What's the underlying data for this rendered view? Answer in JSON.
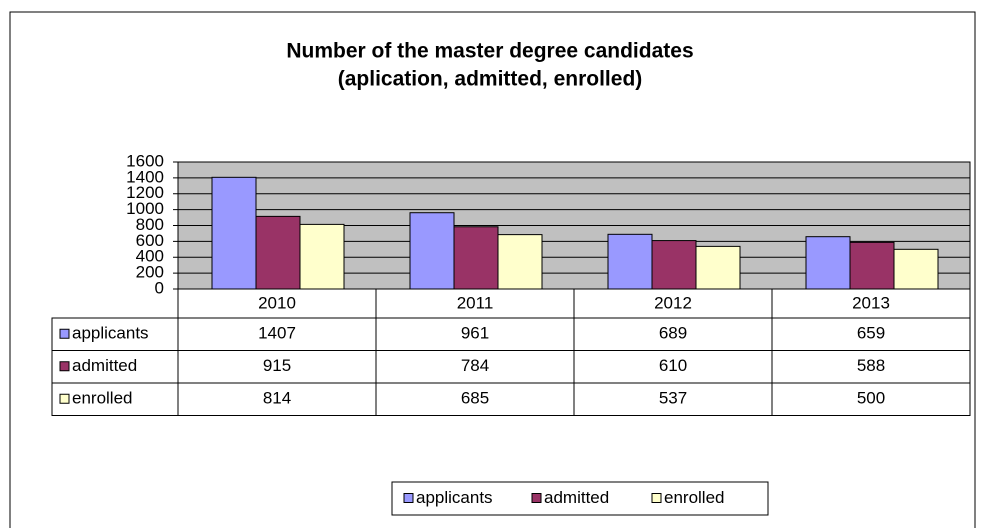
{
  "chart_data": {
    "type": "bar",
    "title": "Number of the master degree candidates",
    "subtitle": "(aplication, admitted, enrolled)",
    "categories": [
      "2010",
      "2011",
      "2012",
      "2013"
    ],
    "series": [
      {
        "name": "applicants",
        "color": "#9999ff",
        "values": [
          1407,
          961,
          689,
          659
        ]
      },
      {
        "name": "admitted",
        "color": "#993366",
        "values": [
          915,
          784,
          610,
          588
        ]
      },
      {
        "name": "enrolled",
        "color": "#ffffcc",
        "values": [
          814,
          685,
          537,
          500
        ]
      }
    ],
    "ylim": [
      0,
      1600
    ],
    "yticks": [
      0,
      200,
      400,
      600,
      800,
      1000,
      1200,
      1400,
      1600
    ],
    "grid": true,
    "plot_background": "#c0c0c0",
    "data_table": true,
    "legend": "bottom"
  }
}
